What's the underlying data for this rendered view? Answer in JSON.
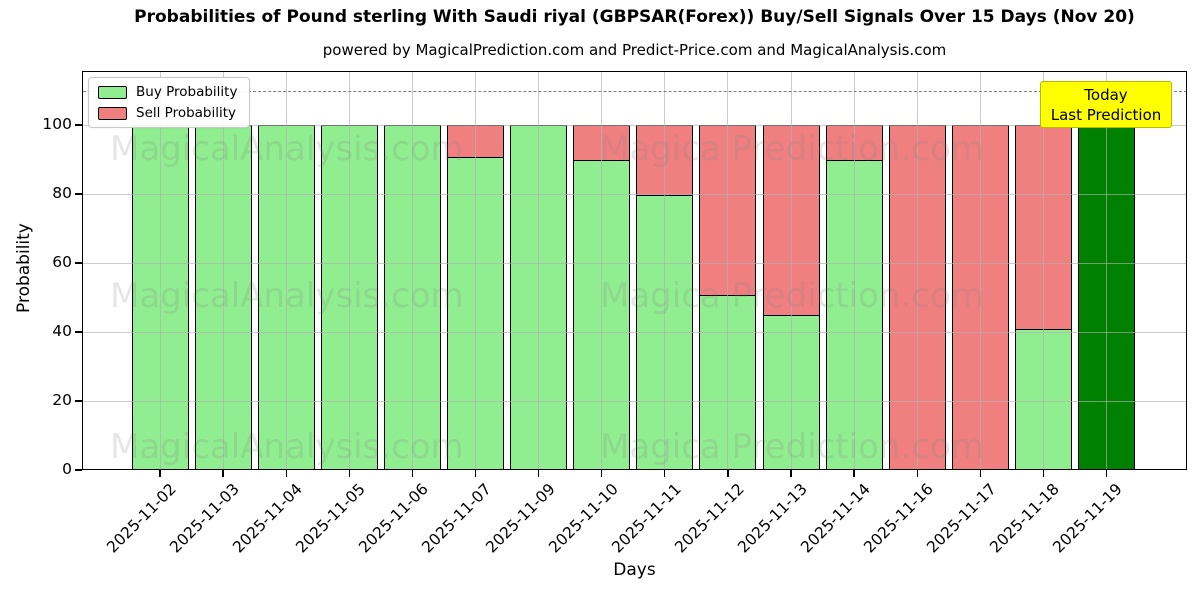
{
  "title": "Probabilities of Pound sterling With Saudi riyal (GBPSAR(Forex)) Buy/Sell Signals Over 15 Days (Nov 20)",
  "subtitle": "powered by MagicalPrediction.com and Predict-Price.com and MagicalAnalysis.com",
  "axes": {
    "xlabel": "Days",
    "ylabel": "Probability"
  },
  "legend": {
    "items": [
      {
        "label": "Buy Probability",
        "color": "#90ee90"
      },
      {
        "label": "Sell Probability",
        "color": "#f08080"
      }
    ]
  },
  "annotation_box": {
    "line1": "Today",
    "line2": "Last Prediction",
    "bg_color": "#ffff00",
    "border_color": "#b9b900"
  },
  "watermarks": {
    "left_text": "MagicalAnalysis.com",
    "right_text": "Magica Prediction.com"
  },
  "chart_data": {
    "type": "bar",
    "stacked": true,
    "title": "Probabilities of Pound sterling With Saudi riyal (GBPSAR(Forex)) Buy/Sell Signals Over 15 Days (Nov 20)",
    "xlabel": "Days",
    "ylabel": "Probability",
    "categories": [
      "2025-11-02",
      "2025-11-03",
      "2025-11-04",
      "2025-11-05",
      "2025-11-06",
      "2025-11-07",
      "2025-11-09",
      "2025-11-10",
      "2025-11-11",
      "2025-11-12",
      "2025-11-13",
      "2025-11-14",
      "2025-11-16",
      "2025-11-17",
      "2025-11-18",
      "2025-11-19"
    ],
    "series": [
      {
        "name": "Buy Probability",
        "color": "#90ee90",
        "values": [
          100,
          100,
          100,
          100,
          100,
          91,
          100,
          90,
          80,
          51,
          45,
          90,
          0,
          0,
          41,
          100
        ]
      },
      {
        "name": "Sell Probability",
        "color": "#f08080",
        "values": [
          0,
          0,
          0,
          0,
          0,
          9,
          0,
          10,
          20,
          49,
          55,
          10,
          100,
          100,
          59,
          0
        ]
      }
    ],
    "today_bar": {
      "category": "2025-11-19",
      "color": "#008000",
      "note": "Today / Last Prediction"
    },
    "ylim": [
      0,
      115
    ],
    "yticks": [
      0,
      20,
      40,
      60,
      80,
      100
    ],
    "dashed_threshold_y": 110,
    "grid": true,
    "legend_position": "upper left"
  }
}
